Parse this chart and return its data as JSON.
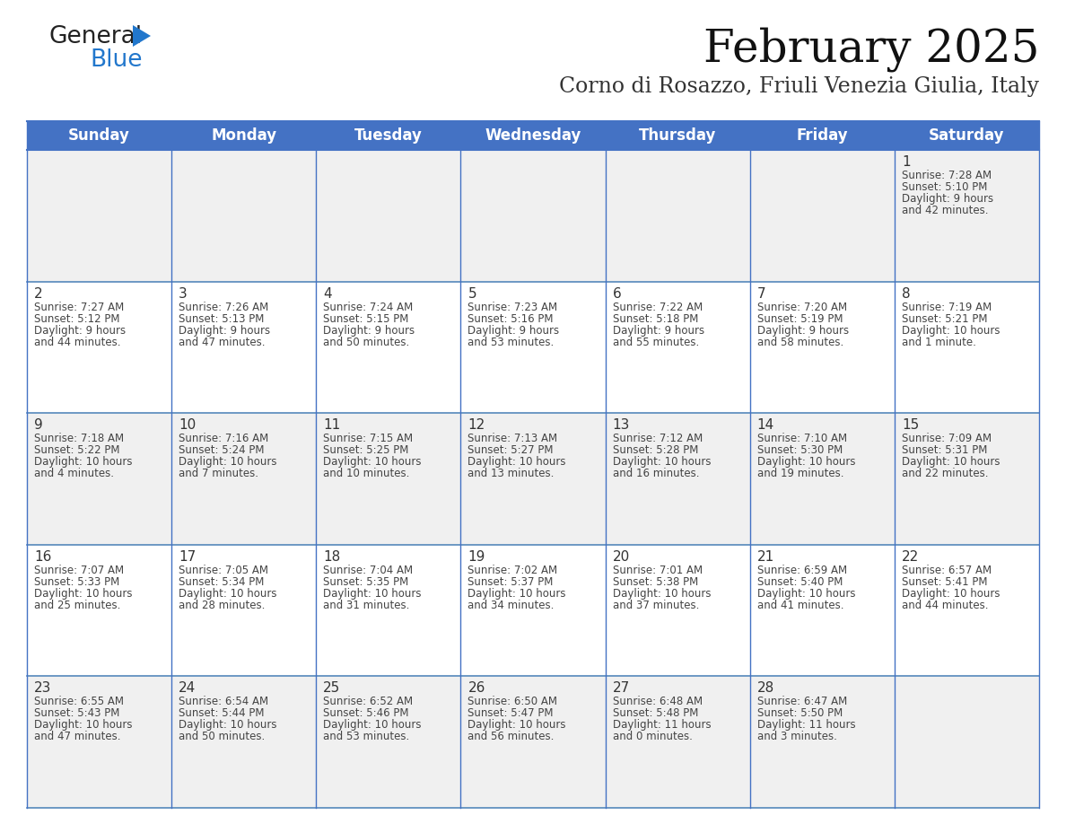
{
  "title": "February 2025",
  "subtitle": "Corno di Rosazzo, Friuli Venezia Giulia, Italy",
  "header_bg": "#4472C4",
  "header_text": "#FFFFFF",
  "cell_bg_light": "#F0F0F0",
  "cell_bg_white": "#FFFFFF",
  "day_headers": [
    "Sunday",
    "Monday",
    "Tuesday",
    "Wednesday",
    "Thursday",
    "Friday",
    "Saturday"
  ],
  "days": [
    {
      "day": 1,
      "col": 6,
      "row": 0,
      "sunrise": "7:28 AM",
      "sunset": "5:10 PM",
      "daylight": "9 hours and 42 minutes."
    },
    {
      "day": 2,
      "col": 0,
      "row": 1,
      "sunrise": "7:27 AM",
      "sunset": "5:12 PM",
      "daylight": "9 hours and 44 minutes."
    },
    {
      "day": 3,
      "col": 1,
      "row": 1,
      "sunrise": "7:26 AM",
      "sunset": "5:13 PM",
      "daylight": "9 hours and 47 minutes."
    },
    {
      "day": 4,
      "col": 2,
      "row": 1,
      "sunrise": "7:24 AM",
      "sunset": "5:15 PM",
      "daylight": "9 hours and 50 minutes."
    },
    {
      "day": 5,
      "col": 3,
      "row": 1,
      "sunrise": "7:23 AM",
      "sunset": "5:16 PM",
      "daylight": "9 hours and 53 minutes."
    },
    {
      "day": 6,
      "col": 4,
      "row": 1,
      "sunrise": "7:22 AM",
      "sunset": "5:18 PM",
      "daylight": "9 hours and 55 minutes."
    },
    {
      "day": 7,
      "col": 5,
      "row": 1,
      "sunrise": "7:20 AM",
      "sunset": "5:19 PM",
      "daylight": "9 hours and 58 minutes."
    },
    {
      "day": 8,
      "col": 6,
      "row": 1,
      "sunrise": "7:19 AM",
      "sunset": "5:21 PM",
      "daylight": "10 hours and 1 minute."
    },
    {
      "day": 9,
      "col": 0,
      "row": 2,
      "sunrise": "7:18 AM",
      "sunset": "5:22 PM",
      "daylight": "10 hours and 4 minutes."
    },
    {
      "day": 10,
      "col": 1,
      "row": 2,
      "sunrise": "7:16 AM",
      "sunset": "5:24 PM",
      "daylight": "10 hours and 7 minutes."
    },
    {
      "day": 11,
      "col": 2,
      "row": 2,
      "sunrise": "7:15 AM",
      "sunset": "5:25 PM",
      "daylight": "10 hours and 10 minutes."
    },
    {
      "day": 12,
      "col": 3,
      "row": 2,
      "sunrise": "7:13 AM",
      "sunset": "5:27 PM",
      "daylight": "10 hours and 13 minutes."
    },
    {
      "day": 13,
      "col": 4,
      "row": 2,
      "sunrise": "7:12 AM",
      "sunset": "5:28 PM",
      "daylight": "10 hours and 16 minutes."
    },
    {
      "day": 14,
      "col": 5,
      "row": 2,
      "sunrise": "7:10 AM",
      "sunset": "5:30 PM",
      "daylight": "10 hours and 19 minutes."
    },
    {
      "day": 15,
      "col": 6,
      "row": 2,
      "sunrise": "7:09 AM",
      "sunset": "5:31 PM",
      "daylight": "10 hours and 22 minutes."
    },
    {
      "day": 16,
      "col": 0,
      "row": 3,
      "sunrise": "7:07 AM",
      "sunset": "5:33 PM",
      "daylight": "10 hours and 25 minutes."
    },
    {
      "day": 17,
      "col": 1,
      "row": 3,
      "sunrise": "7:05 AM",
      "sunset": "5:34 PM",
      "daylight": "10 hours and 28 minutes."
    },
    {
      "day": 18,
      "col": 2,
      "row": 3,
      "sunrise": "7:04 AM",
      "sunset": "5:35 PM",
      "daylight": "10 hours and 31 minutes."
    },
    {
      "day": 19,
      "col": 3,
      "row": 3,
      "sunrise": "7:02 AM",
      "sunset": "5:37 PM",
      "daylight": "10 hours and 34 minutes."
    },
    {
      "day": 20,
      "col": 4,
      "row": 3,
      "sunrise": "7:01 AM",
      "sunset": "5:38 PM",
      "daylight": "10 hours and 37 minutes."
    },
    {
      "day": 21,
      "col": 5,
      "row": 3,
      "sunrise": "6:59 AM",
      "sunset": "5:40 PM",
      "daylight": "10 hours and 41 minutes."
    },
    {
      "day": 22,
      "col": 6,
      "row": 3,
      "sunrise": "6:57 AM",
      "sunset": "5:41 PM",
      "daylight": "10 hours and 44 minutes."
    },
    {
      "day": 23,
      "col": 0,
      "row": 4,
      "sunrise": "6:55 AM",
      "sunset": "5:43 PM",
      "daylight": "10 hours and 47 minutes."
    },
    {
      "day": 24,
      "col": 1,
      "row": 4,
      "sunrise": "6:54 AM",
      "sunset": "5:44 PM",
      "daylight": "10 hours and 50 minutes."
    },
    {
      "day": 25,
      "col": 2,
      "row": 4,
      "sunrise": "6:52 AM",
      "sunset": "5:46 PM",
      "daylight": "10 hours and 53 minutes."
    },
    {
      "day": 26,
      "col": 3,
      "row": 4,
      "sunrise": "6:50 AM",
      "sunset": "5:47 PM",
      "daylight": "10 hours and 56 minutes."
    },
    {
      "day": 27,
      "col": 4,
      "row": 4,
      "sunrise": "6:48 AM",
      "sunset": "5:48 PM",
      "daylight": "11 hours and 0 minutes."
    },
    {
      "day": 28,
      "col": 5,
      "row": 4,
      "sunrise": "6:47 AM",
      "sunset": "5:50 PM",
      "daylight": "11 hours and 3 minutes."
    }
  ],
  "num_rows": 5,
  "num_cols": 7,
  "line_color": "#4472C4",
  "row_line_color": "#5588BB",
  "day_num_color": "#333333",
  "info_color": "#444444",
  "title_color": "#111111",
  "subtitle_color": "#333333",
  "logo_general_color": "#222222",
  "logo_blue_color": "#2277CC",
  "fig_width": 11.88,
  "fig_height": 9.18,
  "dpi": 100
}
